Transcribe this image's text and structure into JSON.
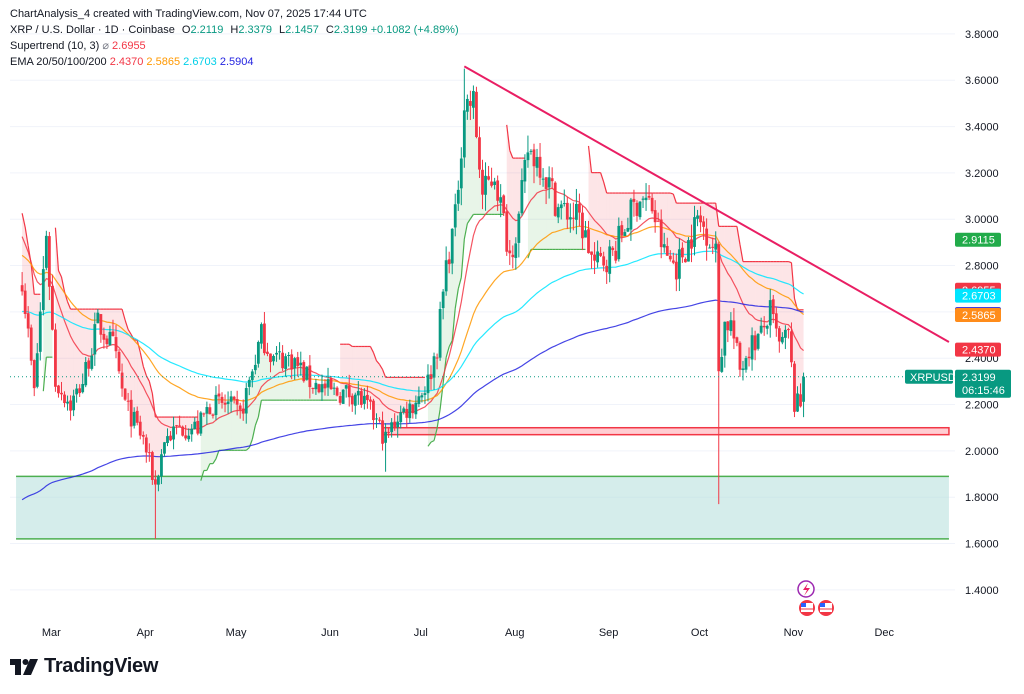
{
  "header": {
    "attribution": "ChartAnalysis_4 created with TradingView.com, Nov 07, 2025 17:44 UTC",
    "symbol_line": "XRP / U.S. Dollar · 1D · Coinbase",
    "ohlc": {
      "o_label": "O",
      "o": "2.2119",
      "h_label": "H",
      "h": "2.3379",
      "l_label": "L",
      "l": "2.1457",
      "c_label": "C",
      "c": "2.3199",
      "change": "+0.1082 (+4.89%)"
    },
    "supertrend_label": "Supertrend (10, 3)",
    "supertrend_symbol": "⌀",
    "supertrend_value": "2.6955",
    "ema_label": "EMA 20/50/100/200",
    "ema_values": [
      "2.4370",
      "2.5865",
      "2.6703",
      "2.5904"
    ]
  },
  "footer": {
    "brand": "TradingView"
  },
  "price_tag": {
    "symbol": "XRPUSD",
    "price": "2.3199",
    "countdown": "06:15:46"
  },
  "right_tags": [
    {
      "value": "2.9115",
      "color": "#22ab4a",
      "price": 2.9115
    },
    {
      "value": "2.6955",
      "color": "#f23645",
      "price": 2.6955
    },
    {
      "value": "2.6703",
      "color": "#00e5ff",
      "price": 2.6703
    },
    {
      "value": "2.5904",
      "color": "#2424e0",
      "price": 2.5904
    },
    {
      "value": "2.5865",
      "color": "#ff8c1a",
      "price": 2.5865
    },
    {
      "value": "2.4370",
      "color": "#f23645",
      "price": 2.437
    }
  ],
  "colors": {
    "up": "#089981",
    "down": "#f23645",
    "ema20": "#f23645",
    "ema50": "#ff9800",
    "ema100": "#00e5ff",
    "ema200": "#2424e0",
    "trendline": "#e91e63",
    "support_zone": "#b2dfdb",
    "resistance_zone": "#f23645",
    "supertrend_up": "#4caf50",
    "supertrend_down": "#f23645"
  },
  "chart_data": {
    "type": "candlestick",
    "y_ticks": [
      "3.8000",
      "3.6000",
      "3.4000",
      "3.2000",
      "3.0000",
      "2.8000",
      "2.6000",
      "2.4000",
      "2.2000",
      "2.0000",
      "1.8000",
      "1.6000",
      "1.4000"
    ],
    "x_ticks": [
      "Mar",
      "Apr",
      "May",
      "Jun",
      "Jul",
      "Aug",
      "Sep",
      "Oct",
      "Nov",
      "Dec"
    ],
    "ylim": [
      1.27,
      3.86
    ],
    "last": {
      "open": 2.2119,
      "high": 2.3379,
      "low": 2.1457,
      "close": 2.3199
    },
    "price_anchors": [
      [
        "2025-02-22",
        2.75
      ],
      [
        "2025-02-26",
        2.25
      ],
      [
        "2025-03-02",
        2.95
      ],
      [
        "2025-03-05",
        2.3
      ],
      [
        "2025-03-10",
        2.2
      ],
      [
        "2025-03-14",
        2.3
      ],
      [
        "2025-03-19",
        2.55
      ],
      [
        "2025-03-24",
        2.45
      ],
      [
        "2025-03-28",
        2.2
      ],
      [
        "2025-04-03",
        2.05
      ],
      [
        "2025-04-07",
        1.85
      ],
      [
        "2025-04-10",
        2.05
      ],
      [
        "2025-04-15",
        2.1
      ],
      [
        "2025-04-21",
        2.1
      ],
      [
        "2025-04-25",
        2.2
      ],
      [
        "2025-05-01",
        2.2
      ],
      [
        "2025-05-05",
        2.15
      ],
      [
        "2025-05-09",
        2.35
      ],
      [
        "2025-05-12",
        2.5
      ],
      [
        "2025-05-16",
        2.4
      ],
      [
        "2025-05-22",
        2.4
      ],
      [
        "2025-05-28",
        2.3
      ],
      [
        "2025-06-05",
        2.25
      ],
      [
        "2025-06-12",
        2.25
      ],
      [
        "2025-06-18",
        2.15
      ],
      [
        "2025-06-22",
        2.05
      ],
      [
        "2025-06-26",
        2.15
      ],
      [
        "2025-07-01",
        2.2
      ],
      [
        "2025-07-06",
        2.3
      ],
      [
        "2025-07-09",
        2.45
      ],
      [
        "2025-07-12",
        2.8
      ],
      [
        "2025-07-15",
        3.0
      ],
      [
        "2025-07-18",
        3.5
      ],
      [
        "2025-07-21",
        3.5
      ],
      [
        "2025-07-24",
        3.1
      ],
      [
        "2025-07-28",
        3.2
      ],
      [
        "2025-08-02",
        2.85
      ],
      [
        "2025-08-05",
        3.0
      ],
      [
        "2025-08-08",
        3.3
      ],
      [
        "2025-08-12",
        3.25
      ],
      [
        "2025-08-18",
        3.05
      ],
      [
        "2025-08-25",
        3.0
      ],
      [
        "2025-08-30",
        2.8
      ],
      [
        "2025-09-05",
        2.85
      ],
      [
        "2025-09-10",
        3.0
      ],
      [
        "2025-09-14",
        3.1
      ],
      [
        "2025-09-18",
        3.05
      ],
      [
        "2025-09-22",
        2.85
      ],
      [
        "2025-09-26",
        2.8
      ],
      [
        "2025-09-30",
        2.9
      ],
      [
        "2025-10-03",
        3.0
      ],
      [
        "2025-10-06",
        2.95
      ],
      [
        "2025-10-09",
        2.85
      ],
      [
        "2025-10-10",
        2.35
      ],
      [
        "2025-10-12",
        2.55
      ],
      [
        "2025-10-14",
        2.55
      ],
      [
        "2025-10-17",
        2.35
      ],
      [
        "2025-10-20",
        2.45
      ],
      [
        "2025-10-24",
        2.5
      ],
      [
        "2025-10-27",
        2.6
      ],
      [
        "2025-10-30",
        2.45
      ],
      [
        "2025-11-02",
        2.5
      ],
      [
        "2025-11-04",
        2.2
      ],
      [
        "2025-11-06",
        2.2
      ],
      [
        "2025-11-07",
        2.3199
      ]
    ],
    "wick_extremes": [
      [
        "2025-04-07",
        1.62
      ],
      [
        "2025-10-10",
        1.77
      ],
      [
        "2025-07-18",
        3.65
      ],
      [
        "2025-06-22",
        1.91
      ]
    ],
    "trendline": {
      "from": [
        "2025-07-18",
        3.66
      ],
      "to": [
        "2025-12-25",
        2.47
      ]
    },
    "support_zone": {
      "from": 1.62,
      "to": 1.89,
      "start": "2025-02-20",
      "end": "2025-12-25"
    },
    "resistance_zone": {
      "from": 2.07,
      "to": 2.1,
      "start": "2025-06-21",
      "end": "2025-12-25"
    },
    "ema_periods": [
      20,
      50,
      100,
      200
    ],
    "ema_seeds": [
      2.95,
      2.85,
      2.6,
      1.78
    ],
    "supertrend": {
      "period": 10,
      "multiplier": 3
    }
  }
}
